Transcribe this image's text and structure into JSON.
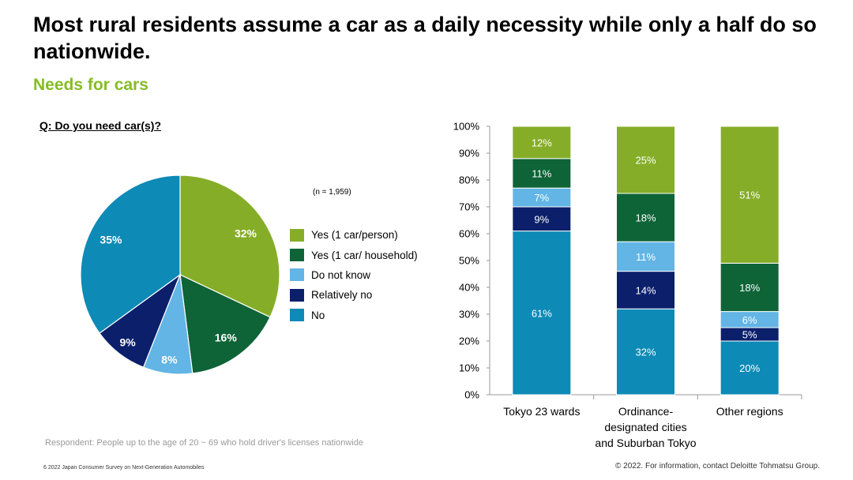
{
  "title": "Most rural residents assume a car as a daily necessity while only a half do so nationwide.",
  "subtitle": "Needs for cars",
  "question": "Q: Do you need car(s)?",
  "sample_note": "(n = 1,959)",
  "respondent_note": "Respondent: People up to the age of 20 ~ 69 who hold driver's licenses nationwide",
  "footer_left": "6   2022 Japan Consumer Survey on Next-Generation Automobiles",
  "footer_right": "© 2022. For information, contact Deloitte Tohmatsu Group.",
  "colors": {
    "Yes (1 car/person)": "#86ad28",
    "Yes (1 car/ household)": "#0e6437",
    "Do not know": "#62b5e5",
    "Relatively no": "#0b1f6b",
    "No": "#0e8ab6"
  },
  "chart_data": [
    {
      "type": "pie",
      "title": "",
      "slices": [
        {
          "label": "Yes (1 car/person)",
          "value": 32,
          "display": "32%"
        },
        {
          "label": "Yes (1 car/ household)",
          "value": 16,
          "display": "16%"
        },
        {
          "label": "Do not know",
          "value": 8,
          "display": "8%"
        },
        {
          "label": "Relatively no",
          "value": 9,
          "display": "9%"
        },
        {
          "label": "No",
          "value": 35,
          "display": "35%"
        }
      ],
      "legend": [
        "Yes (1 car/person)",
        "Yes (1 car/ household)",
        "Do not know",
        "Relatively no",
        "No"
      ],
      "legend_position": "right"
    },
    {
      "type": "bar",
      "stacked": true,
      "categories": [
        "Tokyo 23 wards",
        "Ordinance-designated cities and Suburban Tokyo",
        "Other regions"
      ],
      "category_lines": [
        [
          "Tokyo 23 wards"
        ],
        [
          "Ordinance-",
          "designated cities",
          "and Suburban Tokyo"
        ],
        [
          "Other regions"
        ]
      ],
      "series": [
        {
          "name": "No",
          "values": [
            61,
            32,
            20
          ]
        },
        {
          "name": "Relatively no",
          "values": [
            9,
            14,
            5
          ]
        },
        {
          "name": "Do not know",
          "values": [
            7,
            11,
            6
          ]
        },
        {
          "name": "Yes (1 car/ household)",
          "values": [
            11,
            18,
            18
          ]
        },
        {
          "name": "Yes (1 car/person)",
          "values": [
            12,
            25,
            51
          ]
        }
      ],
      "ylim": [
        0,
        100
      ],
      "yticks": [
        "0%",
        "10%",
        "20%",
        "30%",
        "40%",
        "50%",
        "60%",
        "70%",
        "80%",
        "90%",
        "100%"
      ],
      "xlabel": "",
      "ylabel": ""
    }
  ]
}
